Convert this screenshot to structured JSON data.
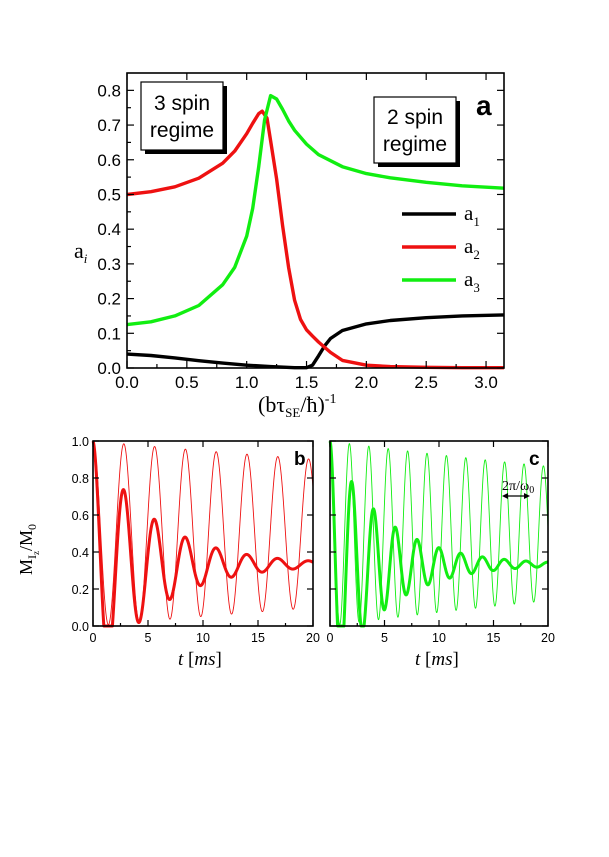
{
  "chart_data": [
    {
      "panel": "a",
      "type": "line",
      "xlabel_parts": [
        "(b",
        "τ",
        "SE",
        "/ħ)",
        "-1"
      ],
      "ylabel_parts": [
        "a",
        "i"
      ],
      "xlim": [
        0,
        3.15
      ],
      "ylim": [
        0,
        0.85
      ],
      "xticks": [
        "0.0",
        "0.5",
        "1.0",
        "1.5",
        "2.0",
        "2.5",
        "3.0"
      ],
      "yticks": [
        "0.0",
        "0.1",
        "0.2",
        "0.3",
        "0.4",
        "0.5",
        "0.6",
        "0.7",
        "0.8"
      ],
      "annotations": {
        "left_box": [
          "3 spin",
          "regime"
        ],
        "right_box": [
          "2 spin",
          "regime"
        ]
      },
      "legend": [
        {
          "base": "a",
          "sub": "1",
          "color": "#000000"
        },
        {
          "base": "a",
          "sub": "2",
          "color": "#ee1111"
        },
        {
          "base": "a",
          "sub": "3",
          "color": "#11ee11"
        }
      ],
      "series": [
        {
          "color": "#000000",
          "x": [
            0,
            0.2,
            0.4,
            0.6,
            0.8,
            1.0,
            1.2,
            1.4,
            1.5,
            1.55,
            1.6,
            1.65,
            1.7,
            1.8,
            2.0,
            2.2,
            2.5,
            2.8,
            3.15
          ],
          "y": [
            0.04,
            0.036,
            0.029,
            0.021,
            0.014,
            0.008,
            0.004,
            0.001,
            0.001,
            0.008,
            0.035,
            0.063,
            0.085,
            0.108,
            0.127,
            0.137,
            0.145,
            0.15,
            0.153
          ]
        },
        {
          "color": "#ee1111",
          "x": [
            0,
            0.2,
            0.4,
            0.6,
            0.8,
            0.9,
            1.0,
            1.05,
            1.1,
            1.13,
            1.17,
            1.2,
            1.25,
            1.3,
            1.35,
            1.4,
            1.45,
            1.5,
            1.55,
            1.6,
            1.7,
            1.8,
            2.0,
            2.2,
            2.5,
            2.8,
            3.15
          ],
          "y": [
            0.5,
            0.508,
            0.522,
            0.547,
            0.59,
            0.625,
            0.675,
            0.705,
            0.733,
            0.74,
            0.72,
            0.655,
            0.545,
            0.41,
            0.29,
            0.195,
            0.14,
            0.11,
            0.092,
            0.075,
            0.045,
            0.022,
            0.008,
            0.004,
            0.002,
            0.001,
            0.001
          ]
        },
        {
          "color": "#11ee11",
          "x": [
            0,
            0.2,
            0.4,
            0.6,
            0.8,
            0.9,
            1.0,
            1.05,
            1.1,
            1.15,
            1.2,
            1.25,
            1.3,
            1.35,
            1.4,
            1.5,
            1.6,
            1.8,
            2.0,
            2.2,
            2.5,
            2.8,
            3.15
          ],
          "y": [
            0.125,
            0.133,
            0.15,
            0.18,
            0.24,
            0.29,
            0.38,
            0.46,
            0.58,
            0.715,
            0.785,
            0.775,
            0.745,
            0.712,
            0.685,
            0.645,
            0.615,
            0.58,
            0.56,
            0.548,
            0.535,
            0.525,
            0.518
          ]
        }
      ]
    },
    {
      "panel": "b",
      "type": "line",
      "xlabel_parts": [
        "t",
        "[",
        "ms",
        "]"
      ],
      "ylabel_parts": [
        "M",
        "I",
        "z",
        "/M",
        "0"
      ],
      "xlim": [
        0,
        20
      ],
      "ylim": [
        0,
        1.0
      ],
      "xticks": [
        "0",
        "5",
        "10",
        "15",
        "20"
      ],
      "yticks": [
        "0.0",
        "0.2",
        "0.4",
        "0.6",
        "0.8",
        "1.0"
      ],
      "color": "#ee1111",
      "signals": {
        "thin": {
          "amplitude": 0.5,
          "offset": 0.5,
          "period_ms": 2.8,
          "decay": 0.011,
          "phase": 0
        },
        "thick": {
          "amplitude": 0.667,
          "offset": 0.333,
          "period_ms": 2.8,
          "decay": 0.18,
          "phase": 0
        }
      }
    },
    {
      "panel": "c",
      "type": "line",
      "xlabel_parts": [
        "t",
        "[",
        "ms",
        "]"
      ],
      "xlim": [
        0,
        20
      ],
      "ylim": [
        0,
        1.0
      ],
      "xticks": [
        "0",
        "5",
        "10",
        "15",
        "20"
      ],
      "color": "#11ee11",
      "annotation_parts": [
        "2π/ω",
        "0"
      ],
      "signals": {
        "thin": {
          "amplitude": 0.5,
          "offset": 0.5,
          "period_ms": 1.78,
          "decay": 0.016,
          "phase": 0
        },
        "thick": {
          "amplitude": 0.667,
          "offset": 0.333,
          "period_ms": 2.0,
          "decay": 0.2,
          "phase": 0
        }
      }
    }
  ]
}
